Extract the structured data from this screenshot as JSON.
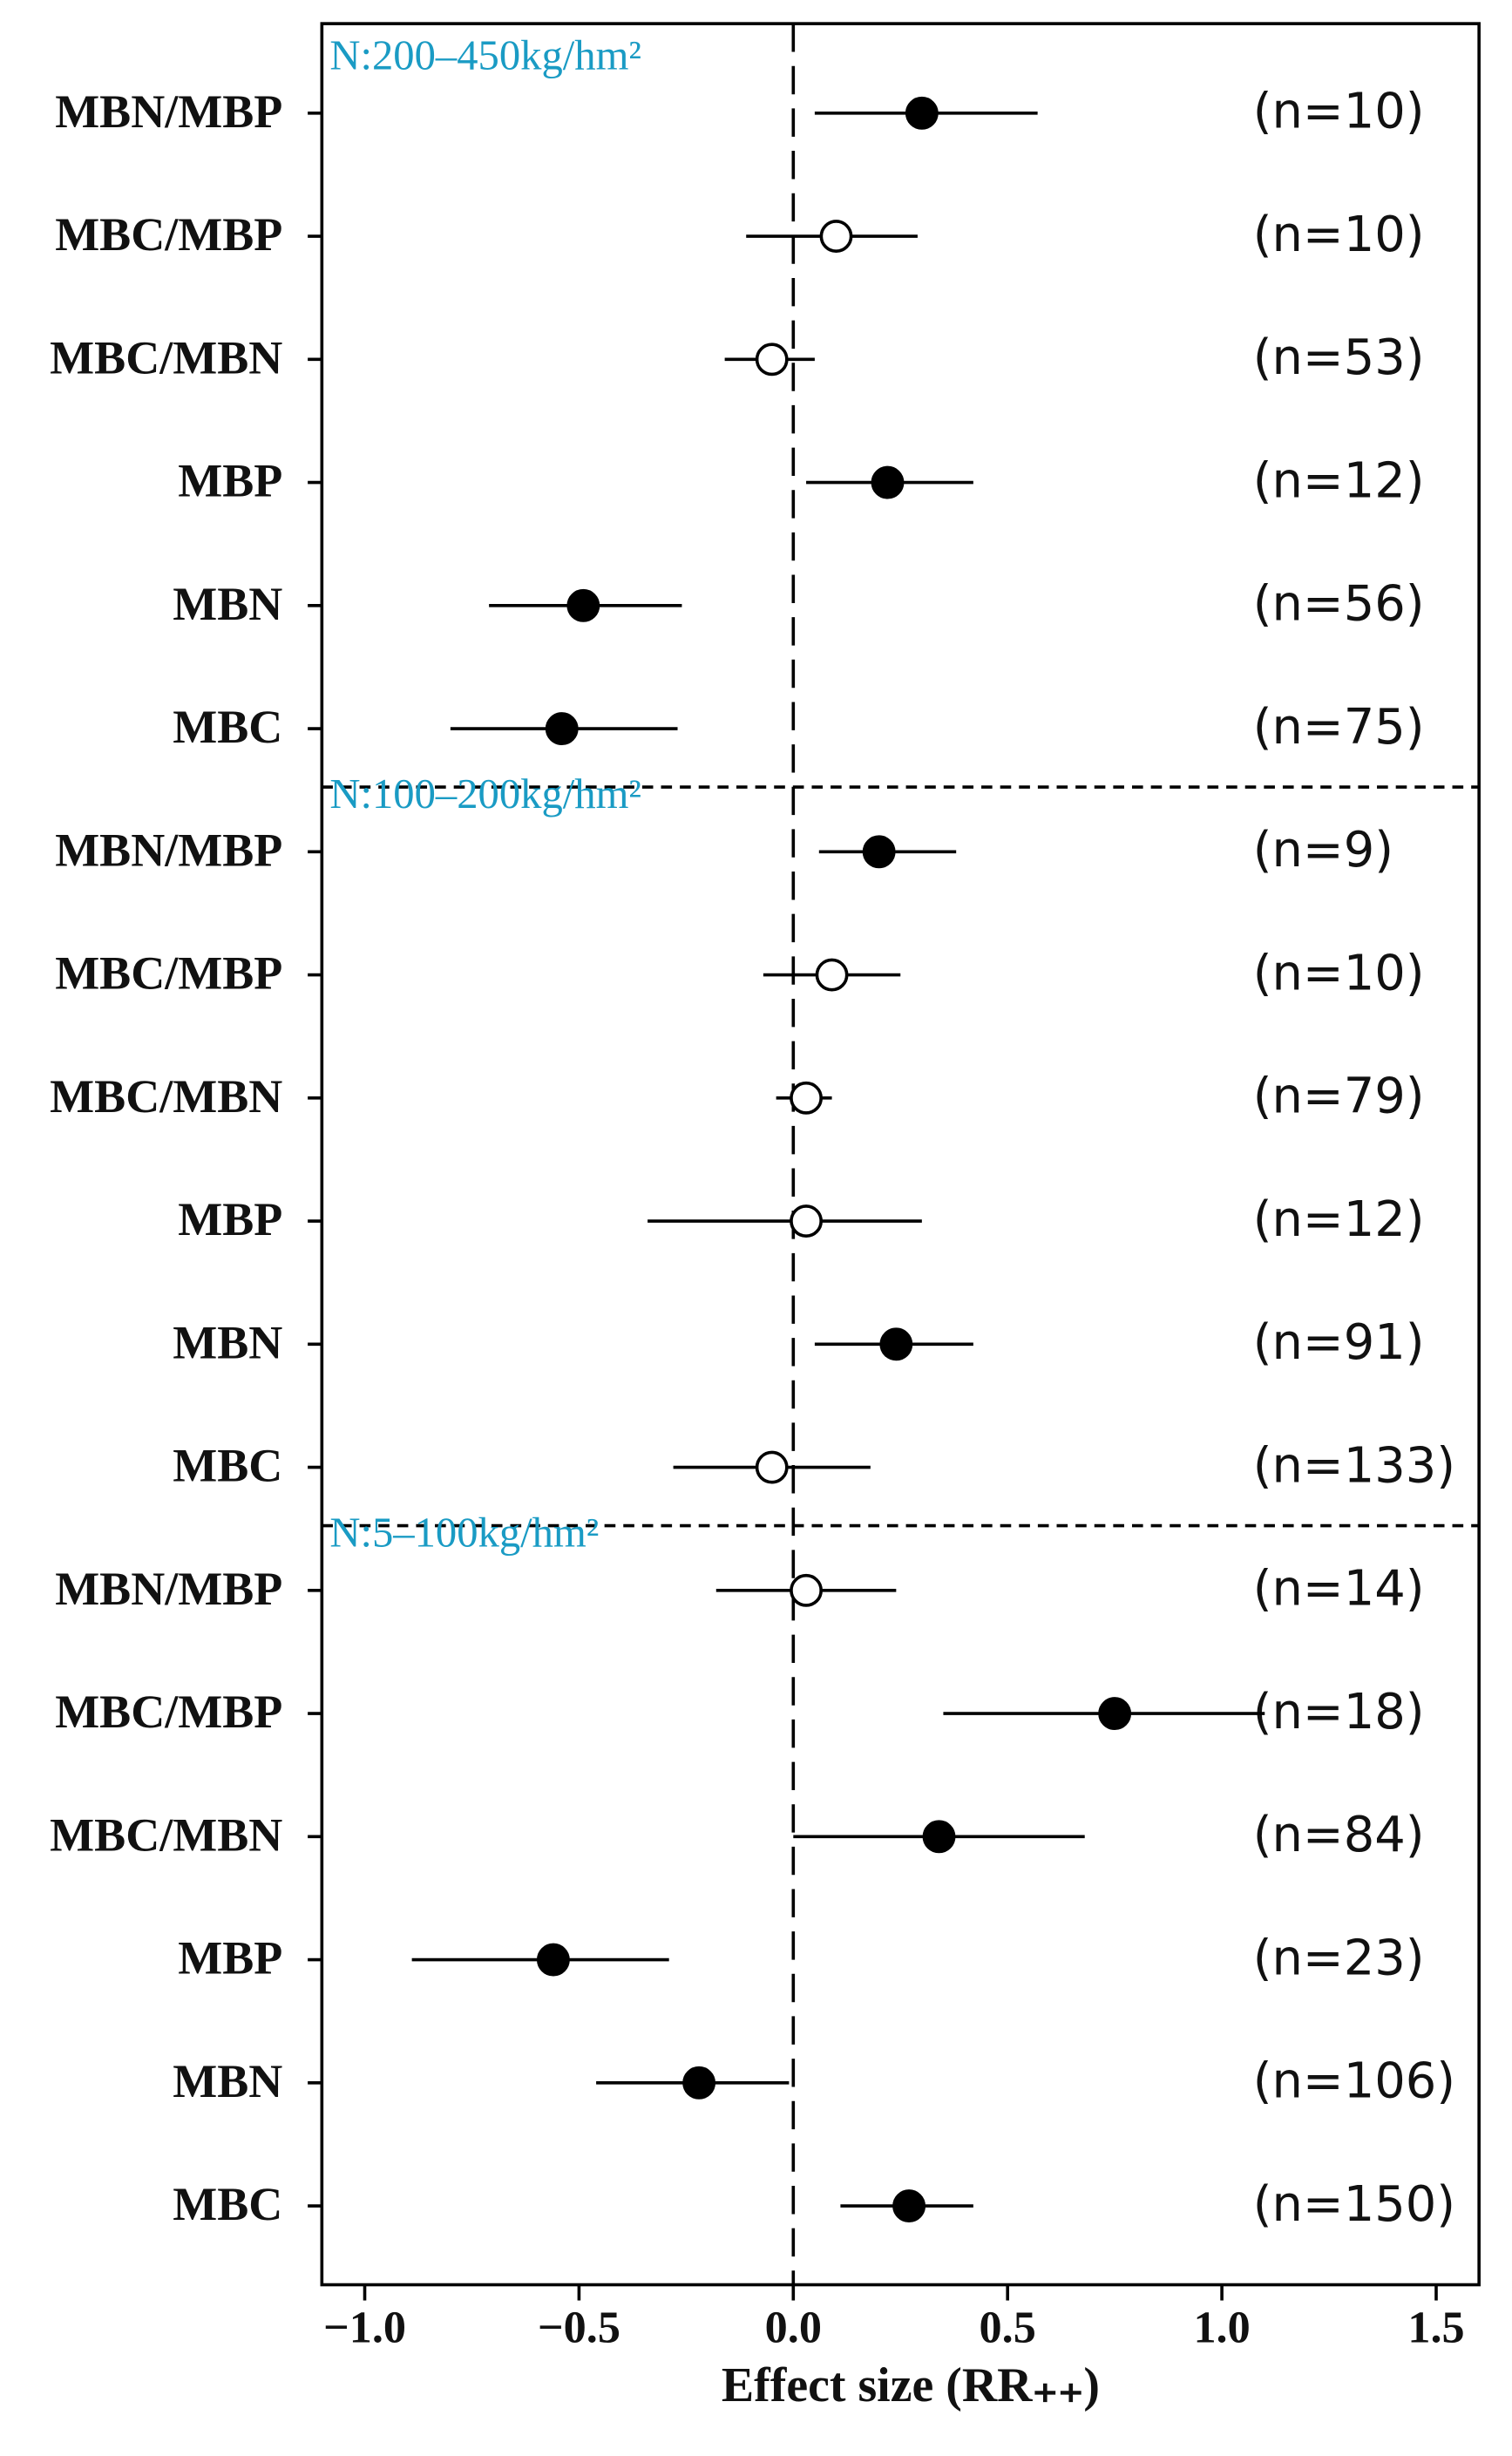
{
  "chart_data": {
    "type": "forest",
    "xlabel": "Effect size (RR₊₊)",
    "xlim": [
      -1.1,
      1.6
    ],
    "xticks": [
      {
        "value": -1,
        "label": "−1.0"
      },
      {
        "value": -0.5,
        "label": "−0.5"
      },
      {
        "value": 0,
        "label": "0.0"
      },
      0.5,
      {
        "value": 1,
        "label": "1.0"
      },
      1.5
    ],
    "reference": 0,
    "color": "#000000",
    "groups": [
      {
        "label": "N:200–450kg/hm²",
        "rows": [
          {
            "label": "MBN/MBP",
            "n": "(n=10)",
            "value": 0.3,
            "lower": 0.05,
            "upper": 0.57,
            "filled": true
          },
          {
            "label": "MBC/MBP",
            "n": "(n=10)",
            "value": 0.1,
            "lower": -0.11,
            "upper": 0.29,
            "filled": false
          },
          {
            "label": "MBC/MBN",
            "n": "(n=53)",
            "value": -0.05,
            "lower": -0.16,
            "upper": 0.05,
            "filled": false
          },
          {
            "label": "MBP",
            "n": "(n=12)",
            "value": 0.22,
            "lower": 0.03,
            "upper": 0.42,
            "filled": true
          },
          {
            "label": "MBN",
            "n": "(n=56)",
            "value": -0.49,
            "lower": -0.71,
            "upper": -0.26,
            "filled": true
          },
          {
            "label": "MBC",
            "n": "(n=75)",
            "value": -0.54,
            "lower": -0.8,
            "upper": -0.27,
            "filled": true
          }
        ]
      },
      {
        "label": "N:100–200kg/hm²",
        "rows": [
          {
            "label": "MBN/MBP",
            "n": "(n=9)",
            "value": 0.2,
            "lower": 0.06,
            "upper": 0.38,
            "filled": true
          },
          {
            "label": "MBC/MBP",
            "n": "(n=10)",
            "value": 0.09,
            "lower": -0.07,
            "upper": 0.25,
            "filled": false
          },
          {
            "label": "MBC/MBN",
            "n": "(n=79)",
            "value": 0.03,
            "lower": -0.04,
            "upper": 0.09,
            "filled": false
          },
          {
            "label": "MBP",
            "n": "(n=12)",
            "value": 0.03,
            "lower": -0.34,
            "upper": 0.3,
            "filled": false
          },
          {
            "label": "MBN",
            "n": "(n=91)",
            "value": 0.24,
            "lower": 0.05,
            "upper": 0.42,
            "filled": true
          },
          {
            "label": "MBC",
            "n": "(n=133)",
            "value": -0.05,
            "lower": -0.28,
            "upper": 0.18,
            "filled": false
          }
        ]
      },
      {
        "label": "N:5–100kg/hm²",
        "rows": [
          {
            "label": "MBN/MBP",
            "n": "(n=14)",
            "value": 0.03,
            "lower": -0.18,
            "upper": 0.24,
            "filled": false
          },
          {
            "label": "MBC/MBP",
            "n": "(n=18)",
            "value": 0.75,
            "lower": 0.35,
            "upper": 1.1,
            "filled": true
          },
          {
            "label": "MBC/MBN",
            "n": "(n=84)",
            "value": 0.34,
            "lower": 0.0,
            "upper": 0.68,
            "filled": true
          },
          {
            "label": "MBP",
            "n": "(n=23)",
            "value": -0.56,
            "lower": -0.89,
            "upper": -0.29,
            "filled": true
          },
          {
            "label": "MBN",
            "n": "(n=106)",
            "value": -0.22,
            "lower": -0.46,
            "upper": -0.01,
            "filled": true
          },
          {
            "label": "MBC",
            "n": "(n=150)",
            "value": 0.27,
            "lower": 0.11,
            "upper": 0.42,
            "filled": true
          }
        ]
      }
    ]
  }
}
